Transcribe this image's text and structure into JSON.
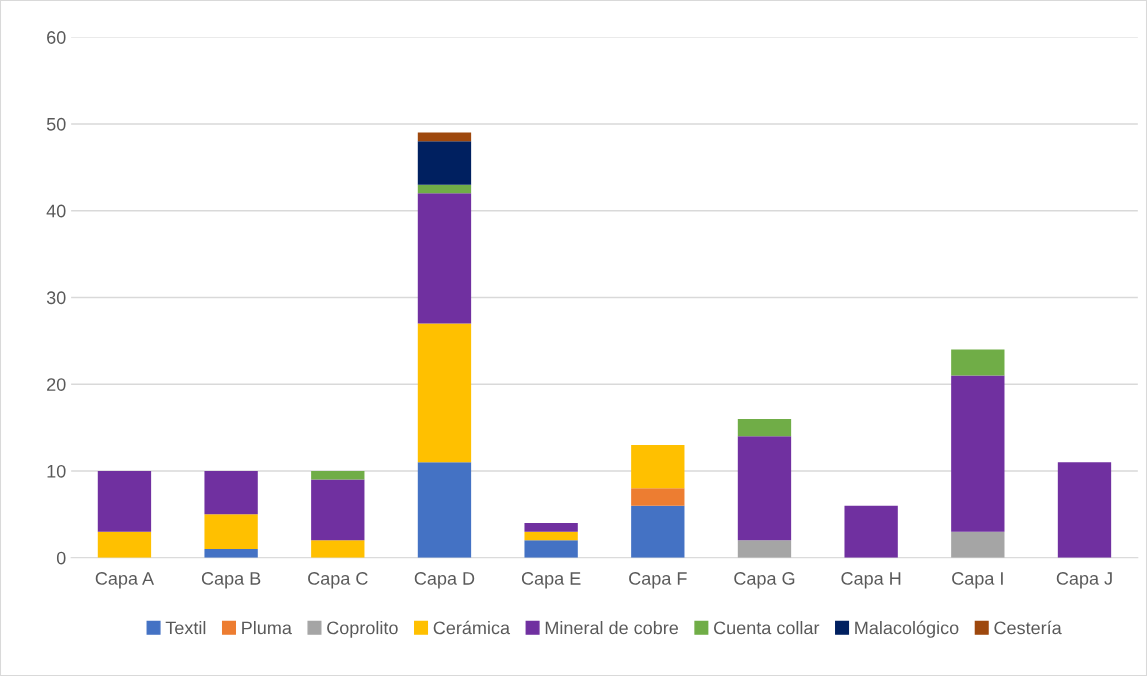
{
  "chart_data": {
    "type": "bar",
    "stacked": true,
    "categories": [
      "Capa A",
      "Capa B",
      "Capa C",
      "Capa D",
      "Capa E",
      "Capa F",
      "Capa G",
      "Capa H",
      "Capa I",
      "Capa J"
    ],
    "series": [
      {
        "name": "Textil",
        "color": "#4472c4",
        "values": [
          0,
          1,
          0,
          11,
          2,
          6,
          0,
          0,
          0,
          0
        ]
      },
      {
        "name": "Pluma",
        "color": "#ed7d31",
        "values": [
          0,
          0,
          0,
          0,
          0,
          2,
          0,
          0,
          0,
          0
        ]
      },
      {
        "name": "Coprolito",
        "color": "#a5a5a5",
        "values": [
          0,
          0,
          0,
          0,
          0,
          0,
          2,
          0,
          3,
          0
        ]
      },
      {
        "name": "Cerámica",
        "color": "#ffc000",
        "values": [
          3,
          4,
          2,
          16,
          1,
          5,
          0,
          0,
          0,
          0
        ]
      },
      {
        "name": "Mineral de cobre",
        "color": "#7030a0",
        "values": [
          7,
          5,
          7,
          15,
          1,
          0,
          12,
          6,
          18,
          11
        ]
      },
      {
        "name": "Cuenta collar",
        "color": "#70ad47",
        "values": [
          0,
          0,
          1,
          1,
          0,
          0,
          2,
          0,
          3,
          0
        ]
      },
      {
        "name": "Malacológico",
        "color": "#002060",
        "values": [
          0,
          0,
          0,
          5,
          0,
          0,
          0,
          0,
          0,
          0
        ]
      },
      {
        "name": "Cestería",
        "color": "#9e480e",
        "values": [
          0,
          0,
          0,
          1,
          0,
          0,
          0,
          0,
          0,
          0
        ]
      }
    ],
    "ylim": [
      0,
      60
    ],
    "yticks": [
      0,
      10,
      20,
      30,
      40,
      50,
      60
    ],
    "grid": "y",
    "legend": "bottom"
  }
}
